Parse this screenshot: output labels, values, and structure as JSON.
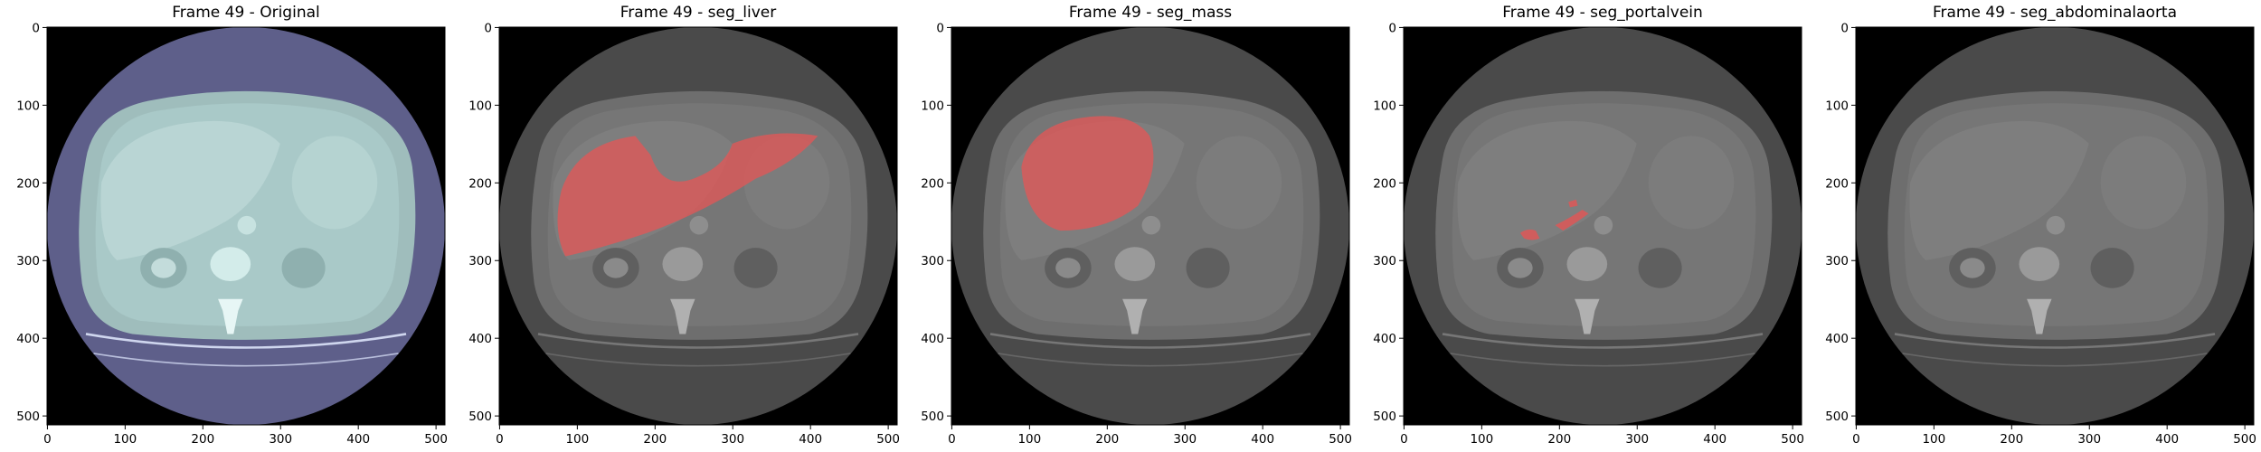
{
  "panels": [
    {
      "title": "Frame 49 - Original",
      "mode": "original",
      "overlay": "none"
    },
    {
      "title": "Frame 49 - seg_liver",
      "mode": "gray",
      "overlay": "liver"
    },
    {
      "title": "Frame 49 - seg_mass",
      "mode": "gray",
      "overlay": "mass"
    },
    {
      "title": "Frame 49 - seg_portalvein",
      "mode": "gray",
      "overlay": "portalvein"
    },
    {
      "title": "Frame 49 - seg_abdominalaorta",
      "mode": "gray",
      "overlay": "none"
    }
  ],
  "axis": {
    "x_ticks": [
      "0",
      "100",
      "200",
      "300",
      "400",
      "500"
    ],
    "y_ticks": [
      "0",
      "100",
      "200",
      "300",
      "400",
      "500"
    ],
    "x_tick_values": [
      0,
      100,
      200,
      300,
      400,
      500
    ],
    "y_tick_values": [
      0,
      100,
      200,
      300,
      400,
      500
    ],
    "image_size": [
      512,
      512
    ]
  },
  "colors": {
    "overlay": "#d85a5a",
    "original_body": "#9fbdbc",
    "original_ring": "#5e5f8a",
    "gray_body": "#6e6e6e",
    "gray_ring": "#4a4a4a",
    "background": "#000000"
  }
}
